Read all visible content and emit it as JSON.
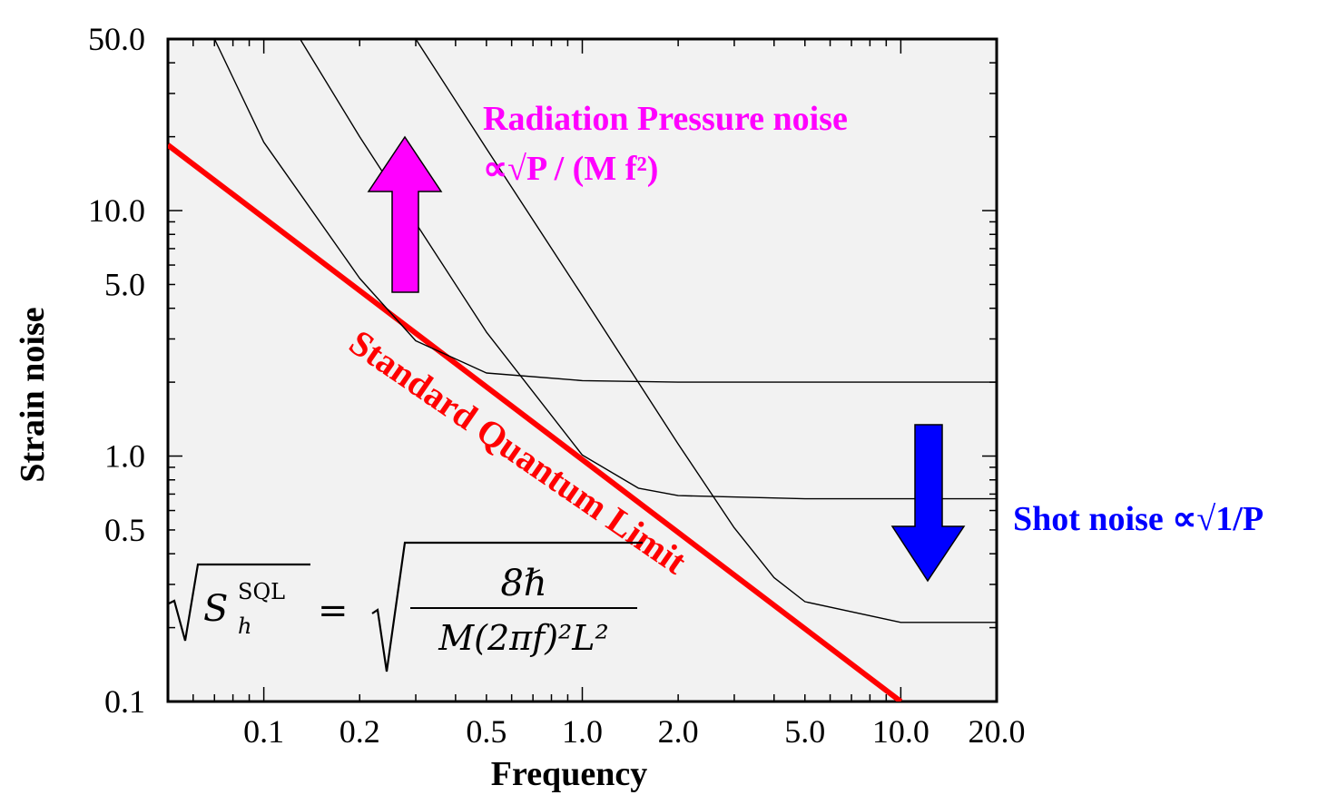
{
  "chart_data": {
    "type": "line",
    "xlabel": "Frequency",
    "ylabel": "Strain noise",
    "scale": "log-log",
    "xlim": [
      0.05,
      20.0
    ],
    "ylim": [
      0.1,
      50.0
    ],
    "xticks": [
      "0.1",
      "0.2",
      "0.5",
      "1.0",
      "2.0",
      "5.0",
      "10.0",
      "20.0"
    ],
    "yticks": [
      "0.1",
      "0.5",
      "1.0",
      "5.0",
      "10.0",
      "50.0"
    ],
    "series": [
      {
        "name": "Standard Quantum Limit",
        "color": "#ff0000",
        "x": [
          0.05,
          10.0
        ],
        "y": [
          18.5,
          0.1
        ]
      },
      {
        "name": "",
        "color": "#000000",
        "x": [
          0.07,
          0.1,
          0.2,
          0.3,
          0.5,
          1.0,
          2.0,
          5.0,
          10.0,
          20.0
        ],
        "y": [
          50.0,
          19.0,
          5.3,
          2.95,
          2.18,
          2.03,
          2.0,
          2.0,
          2.0,
          2.0
        ]
      },
      {
        "name": "",
        "color": "#000000",
        "x": [
          0.13,
          0.2,
          0.3,
          0.5,
          1.0,
          1.5,
          2.0,
          5.0,
          10.0,
          20.0
        ],
        "y": [
          50.0,
          20.0,
          8.9,
          3.2,
          1.01,
          0.74,
          0.69,
          0.67,
          0.67,
          0.67
        ]
      },
      {
        "name": "",
        "color": "#000000",
        "x": [
          0.3,
          0.5,
          1.0,
          2.0,
          3.0,
          4.0,
          5.0,
          10.0,
          20.0
        ],
        "y": [
          50.0,
          17.9,
          4.5,
          1.12,
          0.51,
          0.32,
          0.255,
          0.21,
          0.21
        ]
      }
    ],
    "annotations": {
      "sql_label": "Standard Quantum Limit",
      "rp_line1": "Radiation Pressure noise",
      "rp_line2": "∝√P  / (M f²)",
      "shot": "Shot noise ∝√1/P",
      "formula_lhs_sup": "SQL",
      "formula_lhs_S": "S",
      "formula_lhs_sub": "h",
      "formula_num": "8ℏ",
      "formula_den": "M(2πf)²L²",
      "formula_eq": "="
    },
    "colors": {
      "sql": "#ff0000",
      "radiation": "#ff00ff",
      "shot": "#0000ff"
    }
  }
}
